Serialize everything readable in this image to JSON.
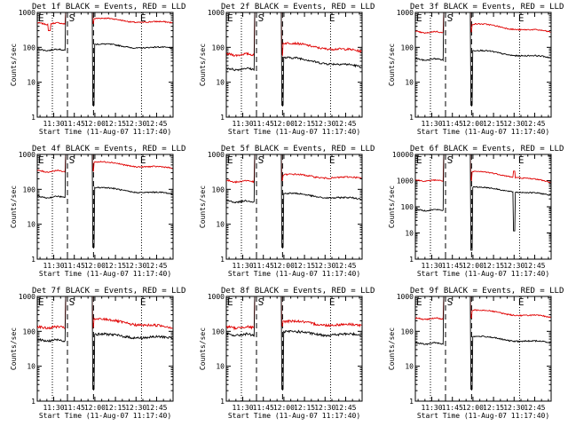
{
  "chart_data": {
    "type": "line",
    "x_label": "Start Time (11-Aug-07 11:17:40)",
    "y_label": "Counts/sec",
    "x_ticks": [
      "11:30",
      "11:45",
      "12:00",
      "12:15",
      "12:30",
      "12:45"
    ],
    "x_tick_minutes": [
      30,
      45,
      60,
      75,
      90,
      105
    ],
    "x_range_minutes": [
      18,
      117
    ],
    "y_scale": "log",
    "y_ticks": [
      1,
      10,
      100,
      1000
    ],
    "flags": {
      "E": "E",
      "S": "S"
    },
    "flag_minutes": {
      "E_start": 18,
      "S": 43,
      "E_end": 93
    },
    "dotted_lines_minutes": [
      29,
      94
    ],
    "dashed_lines_minutes": [
      40,
      59
    ],
    "series_colors": {
      "black": "#000000",
      "red": "#e00000"
    },
    "panels": [
      {
        "title": "Det 1f BLACK = Events, RED = LLD",
        "ymax": 1000,
        "pre": [
          85,
          480
        ],
        "post": [
          120,
          660
        ],
        "end": [
          90,
          480
        ],
        "noise": 0.04,
        "jump_red": true
      },
      {
        "title": "Det 2f BLACK = Events, RED = LLD",
        "ymax": 1000,
        "pre": [
          24,
          62
        ],
        "post": [
          50,
          130
        ],
        "end": [
          26,
          72
        ],
        "noise": 0.07
      },
      {
        "title": "Det 3f BLACK = Events, RED = LLD",
        "ymax": 1000,
        "pre": [
          45,
          270
        ],
        "post": [
          80,
          460
        ],
        "end": [
          48,
          260
        ],
        "noise": 0.04
      },
      {
        "title": "Det 4f BLACK = Events, RED = LLD",
        "ymax": 1000,
        "pre": [
          60,
          330
        ],
        "post": [
          110,
          600
        ],
        "end": [
          70,
          380
        ],
        "noise": 0.04
      },
      {
        "title": "Det 5f BLACK = Events, RED = LLD",
        "ymax": 1000,
        "pre": [
          45,
          170
        ],
        "post": [
          75,
          260
        ],
        "end": [
          50,
          200
        ],
        "noise": 0.05
      },
      {
        "title": "Det 6f BLACK = Events, RED = LLD",
        "ymax": 10000,
        "pre": [
          75,
          1000
        ],
        "post": [
          560,
          2200
        ],
        "end": [
          260,
          800
        ],
        "noise": 0.05,
        "spike": 90
      },
      {
        "title": "Det 7f BLACK = Events, RED = LLD",
        "ymax": 1000,
        "pre": [
          55,
          130
        ],
        "post": [
          80,
          220
        ],
        "end": [
          62,
          120
        ],
        "noise": 0.08
      },
      {
        "title": "Det 8f BLACK = Events, RED = LLD",
        "ymax": 1000,
        "pre": [
          80,
          130
        ],
        "post": [
          95,
          190
        ],
        "end": [
          75,
          140
        ],
        "noise": 0.08
      },
      {
        "title": "Det 9f BLACK = Events, RED = LLD",
        "ymax": 1000,
        "pre": [
          45,
          230
        ],
        "post": [
          70,
          400
        ],
        "end": [
          45,
          240
        ],
        "noise": 0.04
      }
    ]
  }
}
